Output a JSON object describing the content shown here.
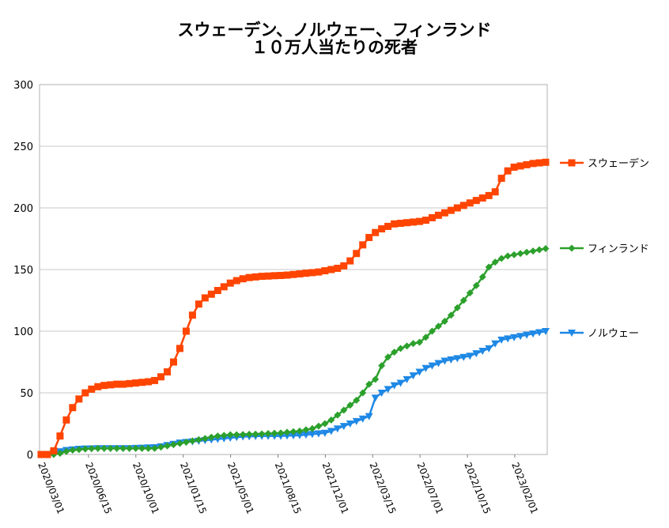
{
  "chart_data": {
    "type": "line",
    "title": [
      "スウェーデン、ノルウェー、フィンランド",
      "１０万人当たりの死者"
    ],
    "xlabel": "",
    "ylabel": "",
    "ylim": [
      0,
      300
    ],
    "yticks": [
      "0",
      "50",
      "100",
      "150",
      "200",
      "250",
      "300"
    ],
    "x_tick_labels": [
      "2020/03/01",
      "2020/06/15",
      "2020/10/01",
      "2021/01/15",
      "2021/05/01",
      "2021/08/15",
      "2021/12/01",
      "2022/03/15",
      "2022/07/01",
      "2022/10/15",
      "2023/02/01"
    ],
    "grid": "horizontal",
    "legend_position": "right",
    "series": [
      {
        "name": "スウェーデン",
        "color": "#ff4500",
        "marker": "square",
        "values": [
          0,
          0,
          3,
          15,
          28,
          38,
          45,
          50,
          53,
          55,
          56,
          56.5,
          57,
          57,
          57.5,
          58,
          58.5,
          59,
          60,
          63,
          67,
          75,
          86,
          100,
          113,
          122,
          127,
          130,
          133,
          136,
          139,
          141,
          142.5,
          143.5,
          144,
          144.5,
          144.7,
          145,
          145.2,
          145.5,
          146,
          146.5,
          147,
          147.5,
          148,
          149,
          150,
          151,
          153,
          157,
          163,
          170,
          176,
          180,
          183,
          185,
          187,
          187.5,
          188,
          188.5,
          189,
          190,
          192,
          194,
          196,
          198,
          200,
          202,
          204,
          206,
          208,
          210,
          213,
          224,
          230,
          233,
          234,
          235,
          236,
          236.5,
          237
        ]
      },
      {
        "name": "フィンランド",
        "color": "#2ca02c",
        "marker": "diamond",
        "values": [
          0,
          0,
          0,
          1,
          2.5,
          3.5,
          4,
          4.5,
          4.8,
          5,
          5,
          5,
          5,
          5,
          5,
          5,
          5,
          5,
          5,
          6,
          7,
          8,
          9,
          10,
          11,
          12,
          13,
          14,
          15,
          15.5,
          16,
          16,
          16.2,
          16.4,
          16.5,
          16.7,
          17,
          17.2,
          17.5,
          18,
          18.5,
          19,
          20,
          21,
          23,
          25,
          28,
          32,
          36,
          40,
          44,
          50,
          57,
          61,
          72,
          79,
          83,
          86,
          88,
          90,
          91,
          95,
          100,
          104,
          108,
          113,
          119,
          125,
          131,
          137,
          144,
          152,
          156,
          159,
          161,
          162,
          163,
          164,
          165,
          166,
          167
        ]
      },
      {
        "name": "ノルウェー",
        "color": "#1e88e5",
        "marker": "triangle-down",
        "values": [
          0,
          0,
          1,
          2.5,
          3.5,
          4,
          4.5,
          4.7,
          4.8,
          5,
          5,
          5,
          5,
          5,
          5,
          5.2,
          5.4,
          5.6,
          5.8,
          6.5,
          7.5,
          8.5,
          9.5,
          10,
          10.5,
          11,
          11.5,
          12,
          12.5,
          13,
          13.5,
          14,
          14.5,
          14.7,
          14.8,
          15,
          15,
          15,
          15,
          15.2,
          15.4,
          15.6,
          16,
          16.5,
          17,
          17.5,
          19,
          21,
          23,
          25,
          27,
          29,
          31,
          46,
          50,
          53,
          56,
          58,
          61,
          64,
          67,
          70,
          72,
          74,
          76,
          77,
          78,
          79,
          80,
          82,
          84,
          86,
          90,
          93,
          94,
          95,
          96,
          97,
          98,
          99,
          100
        ]
      }
    ]
  }
}
